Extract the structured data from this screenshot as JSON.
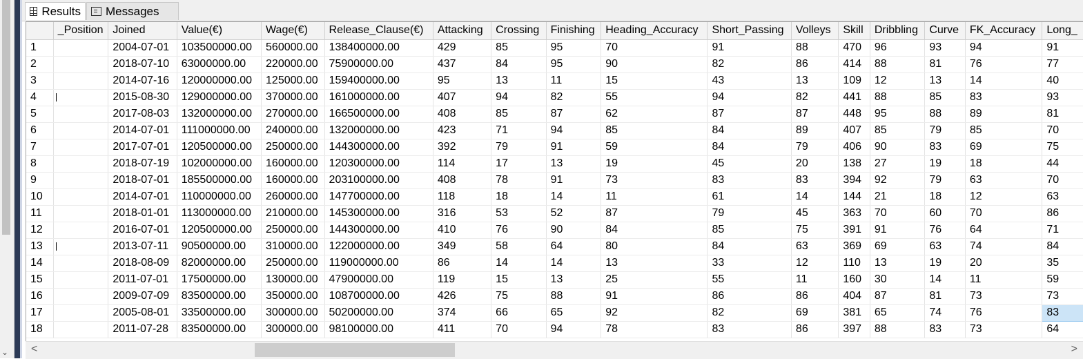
{
  "tabs": [
    {
      "label": "Results",
      "icon": "grid-icon",
      "active": true
    },
    {
      "label": "Messages",
      "icon": "messages-icon",
      "active": false
    }
  ],
  "columns": [
    "",
    "_Position",
    "Joined",
    "Value(€)",
    "Wage(€)",
    "Release_Clause(€)",
    "Attacking",
    "Crossing",
    "Finishing",
    "Heading_Accuracy",
    "Short_Passing",
    "Volleys",
    "Skill",
    "Dribbling",
    "Curve",
    "FK_Accuracy",
    "Long_"
  ],
  "rows": [
    [
      "1",
      "",
      "2004-07-01",
      "103500000.00",
      "560000.00",
      "138400000.00",
      "429",
      "85",
      "95",
      "70",
      "91",
      "88",
      "470",
      "96",
      "93",
      "94",
      "91"
    ],
    [
      "2",
      "",
      "2018-07-10",
      "63000000.00",
      "220000.00",
      "75900000.00",
      "437",
      "84",
      "95",
      "90",
      "82",
      "86",
      "414",
      "88",
      "81",
      "76",
      "77"
    ],
    [
      "3",
      "",
      "2014-07-16",
      "120000000.00",
      "125000.00",
      "159400000.00",
      "95",
      "13",
      "11",
      "15",
      "43",
      "13",
      "109",
      "12",
      "13",
      "14",
      "40"
    ],
    [
      "4",
      "",
      "2015-08-30",
      "129000000.00",
      "370000.00",
      "161000000.00",
      "407",
      "94",
      "82",
      "55",
      "94",
      "82",
      "441",
      "88",
      "85",
      "83",
      "93"
    ],
    [
      "5",
      "",
      "2017-08-03",
      "132000000.00",
      "270000.00",
      "166500000.00",
      "408",
      "85",
      "87",
      "62",
      "87",
      "87",
      "448",
      "95",
      "88",
      "89",
      "81"
    ],
    [
      "6",
      "",
      "2014-07-01",
      "111000000.00",
      "240000.00",
      "132000000.00",
      "423",
      "71",
      "94",
      "85",
      "84",
      "89",
      "407",
      "85",
      "79",
      "85",
      "70"
    ],
    [
      "7",
      "",
      "2017-07-01",
      "120500000.00",
      "250000.00",
      "144300000.00",
      "392",
      "79",
      "91",
      "59",
      "84",
      "79",
      "406",
      "90",
      "83",
      "69",
      "75"
    ],
    [
      "8",
      "",
      "2018-07-19",
      "102000000.00",
      "160000.00",
      "120300000.00",
      "114",
      "17",
      "13",
      "19",
      "45",
      "20",
      "138",
      "27",
      "19",
      "18",
      "44"
    ],
    [
      "9",
      "",
      "2018-07-01",
      "185500000.00",
      "160000.00",
      "203100000.00",
      "408",
      "78",
      "91",
      "73",
      "83",
      "83",
      "394",
      "92",
      "79",
      "63",
      "70"
    ],
    [
      "10",
      "",
      "2014-07-01",
      "110000000.00",
      "260000.00",
      "147700000.00",
      "118",
      "18",
      "14",
      "11",
      "61",
      "14",
      "144",
      "21",
      "18",
      "12",
      "63"
    ],
    [
      "11",
      "",
      "2018-01-01",
      "113000000.00",
      "210000.00",
      "145300000.00",
      "316",
      "53",
      "52",
      "87",
      "79",
      "45",
      "363",
      "70",
      "60",
      "70",
      "86"
    ],
    [
      "12",
      "",
      "2016-07-01",
      "120500000.00",
      "250000.00",
      "144300000.00",
      "410",
      "76",
      "90",
      "84",
      "85",
      "75",
      "391",
      "91",
      "76",
      "64",
      "71"
    ],
    [
      "13",
      "",
      "2013-07-11",
      "90500000.00",
      "310000.00",
      "122000000.00",
      "349",
      "58",
      "64",
      "80",
      "84",
      "63",
      "369",
      "69",
      "63",
      "74",
      "84"
    ],
    [
      "14",
      "",
      "2018-08-09",
      "82000000.00",
      "250000.00",
      "119000000.00",
      "86",
      "14",
      "14",
      "13",
      "33",
      "12",
      "110",
      "13",
      "19",
      "20",
      "35"
    ],
    [
      "15",
      "",
      "2011-07-01",
      "17500000.00",
      "130000.00",
      "47900000.00",
      "119",
      "15",
      "13",
      "25",
      "55",
      "11",
      "160",
      "30",
      "14",
      "11",
      "59"
    ],
    [
      "16",
      "",
      "2009-07-09",
      "83500000.00",
      "350000.00",
      "108700000.00",
      "426",
      "75",
      "88",
      "91",
      "86",
      "86",
      "404",
      "87",
      "81",
      "73",
      "73"
    ],
    [
      "17",
      "",
      "2005-08-01",
      "33500000.00",
      "300000.00",
      "50200000.00",
      "374",
      "66",
      "65",
      "92",
      "82",
      "69",
      "381",
      "65",
      "74",
      "76",
      "83"
    ],
    [
      "18",
      "",
      "2011-07-28",
      "83500000.00",
      "300000.00",
      "98100000.00",
      "411",
      "70",
      "94",
      "78",
      "83",
      "86",
      "397",
      "88",
      "83",
      "73",
      "64"
    ]
  ],
  "marked_rows": [
    4,
    13
  ],
  "selected_cell": {
    "row": 17,
    "column": "Long_"
  },
  "scroll": {
    "left_arrow": "<",
    "right_arrow": ">"
  },
  "colors": {
    "selection": "#cce4f7",
    "splitter": "#2c3a56",
    "header_bg": "#f3f3f3"
  }
}
